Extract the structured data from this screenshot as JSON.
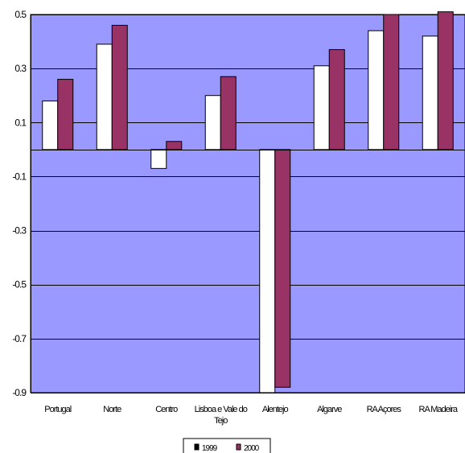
{
  "chart_data": {
    "type": "bar",
    "categories": [
      "Portugal",
      "Norte",
      "Centro",
      "Lisboa e Vale do Tejo",
      "Alentejo",
      "Algarve",
      "RA Açores",
      "RA Madeira"
    ],
    "category_lines": [
      [
        "Portugal"
      ],
      [
        "Norte"
      ],
      [
        "Centro"
      ],
      [
        "Lisboa e Vale do",
        "Tejo"
      ],
      [
        "Alentejo"
      ],
      [
        "Algarve"
      ],
      [
        "RA Açores"
      ],
      [
        "RA Madeira"
      ]
    ],
    "series": [
      {
        "name": "1999",
        "values": [
          0.18,
          0.39,
          -0.07,
          0.2,
          -0.9,
          0.31,
          0.44,
          0.42
        ],
        "color": "#ffffff"
      },
      {
        "name": "2000",
        "values": [
          0.26,
          0.46,
          0.03,
          0.27,
          -0.88,
          0.37,
          0.5,
          0.51
        ],
        "color": "#993366"
      }
    ],
    "yticks": [
      0.5,
      0.3,
      0.1,
      -0.1,
      -0.3,
      -0.5,
      -0.7,
      -0.9
    ],
    "ytick_labels": [
      "0.5",
      "0.3",
      "0.1",
      "-0.1",
      "-0.3",
      "-0.5",
      "-0.7",
      "-0.9"
    ],
    "ylim": [
      -0.9,
      0.5
    ],
    "grid": true,
    "legend_position": "bottom-center",
    "plot_background": "#9999ff",
    "title": "",
    "xlabel": "",
    "ylabel": ""
  }
}
